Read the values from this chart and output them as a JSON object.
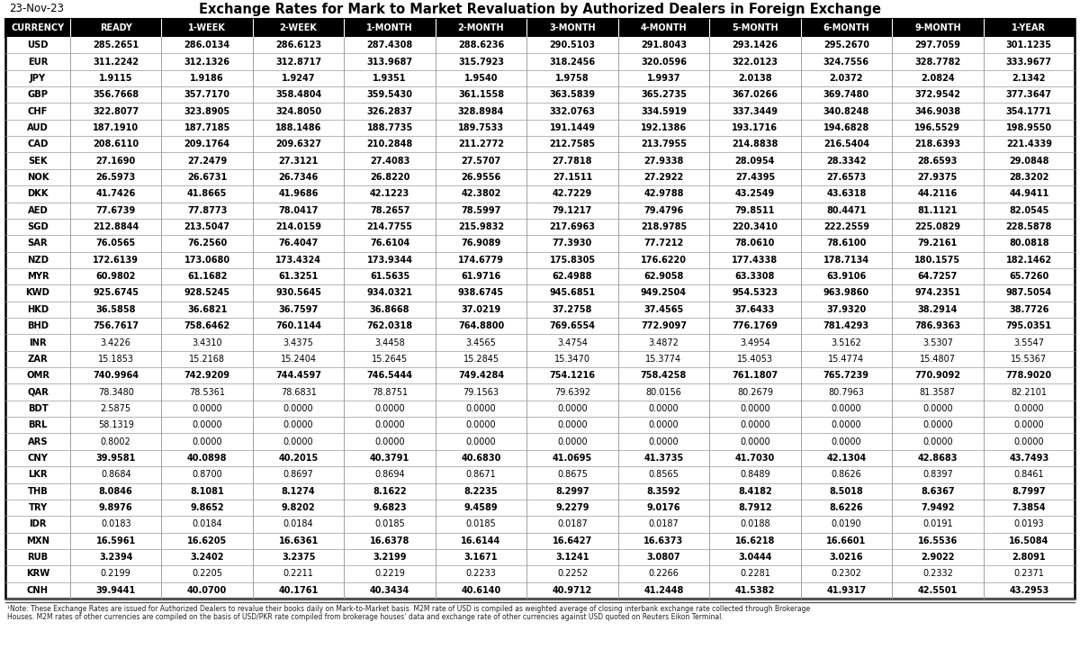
{
  "date": "23-Nov-23",
  "title": "Exchange Rates for Mark to Market Revaluation by Authorized Dealers in Foreign Exchange",
  "columns": [
    "CURRENCY",
    "READY",
    "1-WEEK",
    "2-WEEK",
    "1-MONTH",
    "2-MONTH",
    "3-MONTH",
    "4-MONTH",
    "5-MONTH",
    "6-MONTH",
    "9-MONTH",
    "1-YEAR"
  ],
  "rows": [
    [
      "USD",
      "285.2651",
      "286.0134",
      "286.6123",
      "287.4308",
      "288.6236",
      "290.5103",
      "291.8043",
      "293.1426",
      "295.2670",
      "297.7059",
      "301.1235"
    ],
    [
      "EUR",
      "311.2242",
      "312.1326",
      "312.8717",
      "313.9687",
      "315.7923",
      "318.2456",
      "320.0596",
      "322.0123",
      "324.7556",
      "328.7782",
      "333.9677"
    ],
    [
      "JPY",
      "1.9115",
      "1.9186",
      "1.9247",
      "1.9351",
      "1.9540",
      "1.9758",
      "1.9937",
      "2.0138",
      "2.0372",
      "2.0824",
      "2.1342"
    ],
    [
      "GBP",
      "356.7668",
      "357.7170",
      "358.4804",
      "359.5430",
      "361.1558",
      "363.5839",
      "365.2735",
      "367.0266",
      "369.7480",
      "372.9542",
      "377.3647"
    ],
    [
      "CHF",
      "322.8077",
      "323.8905",
      "324.8050",
      "326.2837",
      "328.8984",
      "332.0763",
      "334.5919",
      "337.3449",
      "340.8248",
      "346.9038",
      "354.1771"
    ],
    [
      "AUD",
      "187.1910",
      "187.7185",
      "188.1486",
      "188.7735",
      "189.7533",
      "191.1449",
      "192.1386",
      "193.1716",
      "194.6828",
      "196.5529",
      "198.9550"
    ],
    [
      "CAD",
      "208.6110",
      "209.1764",
      "209.6327",
      "210.2848",
      "211.2772",
      "212.7585",
      "213.7955",
      "214.8838",
      "216.5404",
      "218.6393",
      "221.4339"
    ],
    [
      "SEK",
      "27.1690",
      "27.2479",
      "27.3121",
      "27.4083",
      "27.5707",
      "27.7818",
      "27.9338",
      "28.0954",
      "28.3342",
      "28.6593",
      "29.0848"
    ],
    [
      "NOK",
      "26.5973",
      "26.6731",
      "26.7346",
      "26.8220",
      "26.9556",
      "27.1511",
      "27.2922",
      "27.4395",
      "27.6573",
      "27.9375",
      "28.3202"
    ],
    [
      "DKK",
      "41.7426",
      "41.8665",
      "41.9686",
      "42.1223",
      "42.3802",
      "42.7229",
      "42.9788",
      "43.2549",
      "43.6318",
      "44.2116",
      "44.9411"
    ],
    [
      "AED",
      "77.6739",
      "77.8773",
      "78.0417",
      "78.2657",
      "78.5997",
      "79.1217",
      "79.4796",
      "79.8511",
      "80.4471",
      "81.1121",
      "82.0545"
    ],
    [
      "SGD",
      "212.8844",
      "213.5047",
      "214.0159",
      "214.7755",
      "215.9832",
      "217.6963",
      "218.9785",
      "220.3410",
      "222.2559",
      "225.0829",
      "228.5878"
    ],
    [
      "SAR",
      "76.0565",
      "76.2560",
      "76.4047",
      "76.6104",
      "76.9089",
      "77.3930",
      "77.7212",
      "78.0610",
      "78.6100",
      "79.2161",
      "80.0818"
    ],
    [
      "NZD",
      "172.6139",
      "173.0680",
      "173.4324",
      "173.9344",
      "174.6779",
      "175.8305",
      "176.6220",
      "177.4338",
      "178.7134",
      "180.1575",
      "182.1462"
    ],
    [
      "MYR",
      "60.9802",
      "61.1682",
      "61.3251",
      "61.5635",
      "61.9716",
      "62.4988",
      "62.9058",
      "63.3308",
      "63.9106",
      "64.7257",
      "65.7260"
    ],
    [
      "KWD",
      "925.6745",
      "928.5245",
      "930.5645",
      "934.0321",
      "938.6745",
      "945.6851",
      "949.2504",
      "954.5323",
      "963.9860",
      "974.2351",
      "987.5054"
    ],
    [
      "HKD",
      "36.5858",
      "36.6821",
      "36.7597",
      "36.8668",
      "37.0219",
      "37.2758",
      "37.4565",
      "37.6433",
      "37.9320",
      "38.2914",
      "38.7726"
    ],
    [
      "BHD",
      "756.7617",
      "758.6462",
      "760.1144",
      "762.0318",
      "764.8800",
      "769.6554",
      "772.9097",
      "776.1769",
      "781.4293",
      "786.9363",
      "795.0351"
    ],
    [
      "INR",
      "3.4226",
      "3.4310",
      "3.4375",
      "3.4458",
      "3.4565",
      "3.4754",
      "3.4872",
      "3.4954",
      "3.5162",
      "3.5307",
      "3.5547"
    ],
    [
      "ZAR",
      "15.1853",
      "15.2168",
      "15.2404",
      "15.2645",
      "15.2845",
      "15.3470",
      "15.3774",
      "15.4053",
      "15.4774",
      "15.4807",
      "15.5367"
    ],
    [
      "OMR",
      "740.9964",
      "742.9209",
      "744.4597",
      "746.5444",
      "749.4284",
      "754.1216",
      "758.4258",
      "761.1807",
      "765.7239",
      "770.9092",
      "778.9020"
    ],
    [
      "QAR",
      "78.3480",
      "78.5361",
      "78.6831",
      "78.8751",
      "79.1563",
      "79.6392",
      "80.0156",
      "80.2679",
      "80.7963",
      "81.3587",
      "82.2101"
    ],
    [
      "BDT",
      "2.5875",
      "0.0000",
      "0.0000",
      "0.0000",
      "0.0000",
      "0.0000",
      "0.0000",
      "0.0000",
      "0.0000",
      "0.0000",
      "0.0000"
    ],
    [
      "BRL",
      "58.1319",
      "0.0000",
      "0.0000",
      "0.0000",
      "0.0000",
      "0.0000",
      "0.0000",
      "0.0000",
      "0.0000",
      "0.0000",
      "0.0000"
    ],
    [
      "ARS",
      "0.8002",
      "0.0000",
      "0.0000",
      "0.0000",
      "0.0000",
      "0.0000",
      "0.0000",
      "0.0000",
      "0.0000",
      "0.0000",
      "0.0000"
    ],
    [
      "CNY",
      "39.9581",
      "40.0898",
      "40.2015",
      "40.3791",
      "40.6830",
      "41.0695",
      "41.3735",
      "41.7030",
      "42.1304",
      "42.8683",
      "43.7493"
    ],
    [
      "LKR",
      "0.8684",
      "0.8700",
      "0.8697",
      "0.8694",
      "0.8671",
      "0.8675",
      "0.8565",
      "0.8489",
      "0.8626",
      "0.8397",
      "0.8461"
    ],
    [
      "THB",
      "8.0846",
      "8.1081",
      "8.1274",
      "8.1622",
      "8.2235",
      "8.2997",
      "8.3592",
      "8.4182",
      "8.5018",
      "8.6367",
      "8.7997"
    ],
    [
      "TRY",
      "9.8976",
      "9.8652",
      "9.8202",
      "9.6823",
      "9.4589",
      "9.2279",
      "9.0176",
      "8.7912",
      "8.6226",
      "7.9492",
      "7.3854"
    ],
    [
      "IDR",
      "0.0183",
      "0.0184",
      "0.0184",
      "0.0185",
      "0.0185",
      "0.0187",
      "0.0187",
      "0.0188",
      "0.0190",
      "0.0191",
      "0.0193"
    ],
    [
      "MXN",
      "16.5961",
      "16.6205",
      "16.6361",
      "16.6378",
      "16.6144",
      "16.6427",
      "16.6373",
      "16.6218",
      "16.6601",
      "16.5536",
      "16.5084"
    ],
    [
      "RUB",
      "3.2394",
      "3.2402",
      "3.2375",
      "3.2199",
      "3.1671",
      "3.1241",
      "3.0807",
      "3.0444",
      "3.0216",
      "2.9022",
      "2.8091"
    ],
    [
      "KRW",
      "0.2199",
      "0.2205",
      "0.2211",
      "0.2219",
      "0.2233",
      "0.2252",
      "0.2266",
      "0.2281",
      "0.2302",
      "0.2332",
      "0.2371"
    ],
    [
      "CNH",
      "39.9441",
      "40.0700",
      "40.1761",
      "40.3434",
      "40.6140",
      "40.9712",
      "41.2448",
      "41.5382",
      "41.9317",
      "42.5501",
      "43.2953"
    ]
  ],
  "bold_currency": [
    "USD",
    "EUR",
    "JPY",
    "GBP",
    "CHF",
    "AUD",
    "CAD",
    "SEK",
    "NOK",
    "DKK",
    "AED",
    "SGD",
    "SAR",
    "NZD",
    "MYR",
    "KWD",
    "HKD",
    "BHD",
    "OMR",
    "CNY",
    "THB",
    "TRY",
    "MXN",
    "RUB",
    "CNH"
  ],
  "footnote_line1": "¹Note: These Exchange Rates are issued for Authorized Dealers to revalue their books daily on Mark-to-Market basis. M2M rate of USD is compiled as weighted average of closing interbank exchange rate collected through Brokerage",
  "footnote_line2": "Houses. M2M rates of other currencies are compiled on the basis of USD/PKR rate compiled from brokerage houses’ data and exchange rate of other currencies against USD quoted on Reuters Eikon Terminal.",
  "header_bg": "#000000",
  "header_fg": "#ffffff",
  "title_color": "#000000",
  "date_color": "#000000",
  "text_color": "#000000",
  "grid_color": "#999999",
  "outer_border_color": "#000000"
}
